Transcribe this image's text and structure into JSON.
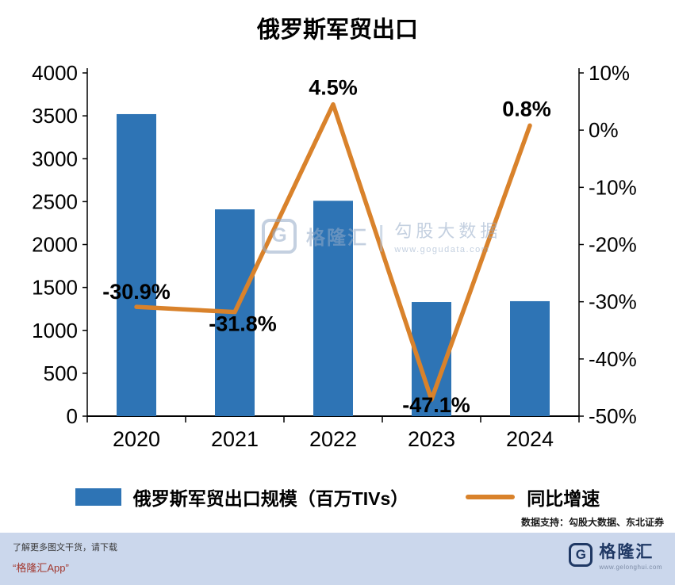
{
  "title": "俄罗斯军贸出口",
  "chart_data": {
    "type": "bar+line combo",
    "categories": [
      "2020",
      "2021",
      "2022",
      "2023",
      "2024"
    ],
    "series": [
      {
        "name": "俄罗斯军贸出口规模（百万TIVs）",
        "type": "bar",
        "axis": "left",
        "values": [
          3520,
          2410,
          2510,
          1330,
          1340
        ],
        "color": "#2E74B5"
      },
      {
        "name": "同比增速",
        "type": "line",
        "axis": "right",
        "values": [
          -30.9,
          -31.8,
          4.5,
          -47.1,
          0.8
        ],
        "labels": [
          "-30.9%",
          "-31.8%",
          "4.5%",
          "-47.1%",
          "0.8%"
        ],
        "color": "#D9822B"
      }
    ],
    "left_axis": {
      "min": 0,
      "max": 4000,
      "ticks": [
        4000,
        3500,
        3000,
        2500,
        2000,
        1500,
        1000,
        500,
        0
      ]
    },
    "right_axis": {
      "min": -50,
      "max": 10,
      "ticks": [
        "10%",
        "0%",
        "-10%",
        "-20%",
        "-30%",
        "-40%",
        "-50%"
      ]
    },
    "grid": "off",
    "legend_position": "bottom"
  },
  "data_support": "数据支持：勾股大数据、东北证券",
  "watermark": {
    "logo_text": "G",
    "brand": "格隆汇",
    "divider": "|",
    "name": "勾股大数据",
    "url": "www.gogudata.com"
  },
  "footer": {
    "line1": "了解更多图文干货，请下载",
    "line2": "“格隆汇App”",
    "logo_g": "G",
    "logo_text": "格隆汇",
    "logo_url": "www.gelonghui.com"
  },
  "colors": {
    "bar": "#2E74B5",
    "line": "#D9822B",
    "footer_bg": "#CBD7EC",
    "accent_red": "#A2372E",
    "navy": "#1F3864",
    "watermark": "#94ABC8"
  }
}
